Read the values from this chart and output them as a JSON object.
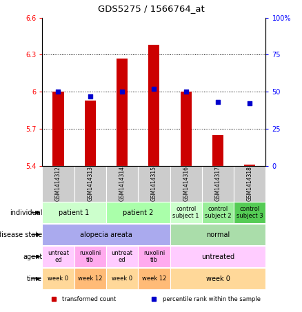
{
  "title": "GDS5275 / 1566764_at",
  "samples": [
    "GSM1414312",
    "GSM1414313",
    "GSM1414314",
    "GSM1414315",
    "GSM1414316",
    "GSM1414317",
    "GSM1414318"
  ],
  "bar_values": [
    6.0,
    5.93,
    6.27,
    6.38,
    6.0,
    5.65,
    5.41
  ],
  "dot_values": [
    50,
    47,
    50,
    52,
    50,
    43,
    42
  ],
  "ylim_left": [
    5.4,
    6.6
  ],
  "ylim_right": [
    0,
    100
  ],
  "yticks_left": [
    5.4,
    5.7,
    6.0,
    6.3,
    6.6
  ],
  "yticks_right": [
    0,
    25,
    50,
    75,
    100
  ],
  "ytick_labels_left": [
    "5.4",
    "5.7",
    "6",
    "6.3",
    "6.6"
  ],
  "ytick_labels_right": [
    "0",
    "25",
    "50",
    "75",
    "100%"
  ],
  "bar_color": "#cc0000",
  "dot_color": "#0000cc",
  "bar_bottom": 5.4,
  "hlines": [
    5.7,
    6.0,
    6.3
  ],
  "annotation_rows": [
    {
      "label": "individual",
      "groups": [
        {
          "text": "patient 1",
          "span": [
            0,
            2
          ],
          "color": "#ccffcc"
        },
        {
          "text": "patient 2",
          "span": [
            2,
            4
          ],
          "color": "#aaffaa"
        },
        {
          "text": "control\nsubject 1",
          "span": [
            4,
            5
          ],
          "color": "#ccffcc"
        },
        {
          "text": "control\nsubject 2",
          "span": [
            5,
            6
          ],
          "color": "#99ee99"
        },
        {
          "text": "control\nsubject 3",
          "span": [
            6,
            7
          ],
          "color": "#55cc55"
        }
      ]
    },
    {
      "label": "disease state",
      "groups": [
        {
          "text": "alopecia areata",
          "span": [
            0,
            4
          ],
          "color": "#aaaaee"
        },
        {
          "text": "normal",
          "span": [
            4,
            7
          ],
          "color": "#aaddaa"
        }
      ]
    },
    {
      "label": "agent",
      "groups": [
        {
          "text": "untreat\ned",
          "span": [
            0,
            1
          ],
          "color": "#ffccff"
        },
        {
          "text": "ruxolini\ntib",
          "span": [
            1,
            2
          ],
          "color": "#ffaaee"
        },
        {
          "text": "untreat\ned",
          "span": [
            2,
            3
          ],
          "color": "#ffccff"
        },
        {
          "text": "ruxolini\ntib",
          "span": [
            3,
            4
          ],
          "color": "#ffaaee"
        },
        {
          "text": "untreated",
          "span": [
            4,
            7
          ],
          "color": "#ffccff"
        }
      ]
    },
    {
      "label": "time",
      "groups": [
        {
          "text": "week 0",
          "span": [
            0,
            1
          ],
          "color": "#ffd899"
        },
        {
          "text": "week 12",
          "span": [
            1,
            2
          ],
          "color": "#ffbb77"
        },
        {
          "text": "week 0",
          "span": [
            2,
            3
          ],
          "color": "#ffd899"
        },
        {
          "text": "week 12",
          "span": [
            3,
            4
          ],
          "color": "#ffbb77"
        },
        {
          "text": "week 0",
          "span": [
            4,
            7
          ],
          "color": "#ffd899"
        }
      ]
    }
  ],
  "sample_box_color": "#cccccc",
  "legend_items": [
    {
      "label": "transformed count",
      "color": "#cc0000"
    },
    {
      "label": "percentile rank within the sample",
      "color": "#0000cc"
    }
  ],
  "fig_width": 4.38,
  "fig_height": 4.53,
  "dpi": 100
}
